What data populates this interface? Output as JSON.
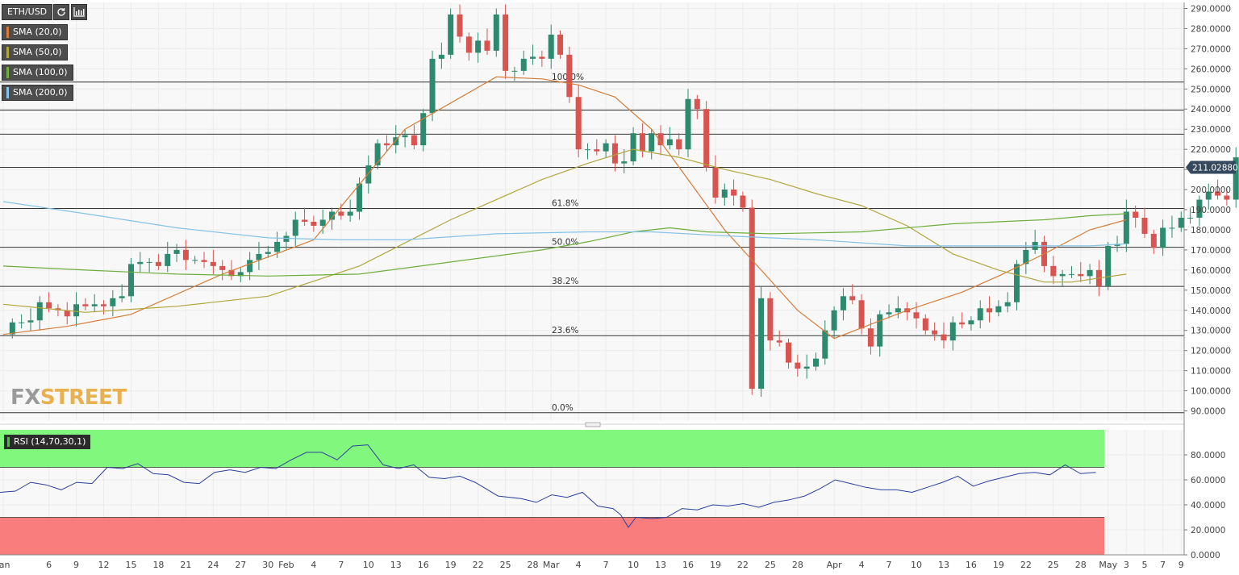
{
  "header": {
    "symbol": "ETH/USD"
  },
  "toolbar": [
    {
      "icon": "refresh-icon"
    },
    {
      "icon": "bar-chart-icon"
    }
  ],
  "indicators": [
    {
      "label": "SMA (20,0)",
      "color": "#d67c37"
    },
    {
      "label": "SMA (50,0)",
      "color": "#b0a63c"
    },
    {
      "label": "SMA (100,0)",
      "color": "#6eae3c"
    },
    {
      "label": "SMA (200,0)",
      "color": "#84c2e8"
    }
  ],
  "rsi_label": "RSI (14,70,30,1)",
  "logo": {
    "fx": "FX",
    "street": "STREET"
  },
  "chart_data": {
    "type": "candlestick",
    "symbol": "ETH/USD",
    "ylim": [
      85,
      293
    ],
    "y_ticks": [
      "90.0000",
      "100.0000",
      "110.0000",
      "120.0000",
      "130.0000",
      "140.0000",
      "150.0000",
      "160.0000",
      "170.0000",
      "180.0000",
      "190.0000",
      "200.0000",
      "210.0000",
      "220.0000",
      "230.0000",
      "240.0000",
      "250.0000",
      "260.0000",
      "270.0000",
      "280.0000",
      "290.0000"
    ],
    "y_tick_values": [
      90,
      100,
      110,
      120,
      130,
      140,
      150,
      160,
      170,
      180,
      190,
      200,
      210,
      220,
      230,
      240,
      250,
      260,
      270,
      280,
      290
    ],
    "x_ticks": [
      {
        "label": "Jan",
        "day": 1
      },
      {
        "label": "6",
        "day": 6
      },
      {
        "label": "9",
        "day": 9
      },
      {
        "label": "12",
        "day": 12
      },
      {
        "label": "15",
        "day": 15
      },
      {
        "label": "18",
        "day": 18
      },
      {
        "label": "21",
        "day": 21
      },
      {
        "label": "24",
        "day": 24
      },
      {
        "label": "27",
        "day": 27
      },
      {
        "label": "30",
        "day": 30
      },
      {
        "label": "Feb",
        "day": 32
      },
      {
        "label": "4",
        "day": 35
      },
      {
        "label": "7",
        "day": 38
      },
      {
        "label": "10",
        "day": 41
      },
      {
        "label": "13",
        "day": 44
      },
      {
        "label": "16",
        "day": 47
      },
      {
        "label": "19",
        "day": 50
      },
      {
        "label": "22",
        "day": 53
      },
      {
        "label": "25",
        "day": 56
      },
      {
        "label": "28",
        "day": 59
      },
      {
        "label": "Mar",
        "day": 61
      },
      {
        "label": "4",
        "day": 64
      },
      {
        "label": "7",
        "day": 67
      },
      {
        "label": "10",
        "day": 70
      },
      {
        "label": "13",
        "day": 73
      },
      {
        "label": "16",
        "day": 76
      },
      {
        "label": "19",
        "day": 79
      },
      {
        "label": "22",
        "day": 82
      },
      {
        "label": "25",
        "day": 85
      },
      {
        "label": "28",
        "day": 88
      },
      {
        "label": "Apr",
        "day": 92
      },
      {
        "label": "4",
        "day": 95
      },
      {
        "label": "7",
        "day": 98
      },
      {
        "label": "10",
        "day": 101
      },
      {
        "label": "13",
        "day": 104
      },
      {
        "label": "16",
        "day": 107
      },
      {
        "label": "19",
        "day": 110
      },
      {
        "label": "22",
        "day": 113
      },
      {
        "label": "25",
        "day": 116
      },
      {
        "label": "28",
        "day": 119
      },
      {
        "label": "May",
        "day": 122
      },
      {
        "label": "3",
        "day": 124
      },
      {
        "label": "5",
        "day": 126
      },
      {
        "label": "7",
        "day": 128
      },
      {
        "label": "9",
        "day": 130
      }
    ],
    "first_day": 2,
    "candles": [
      [
        128,
        134
      ],
      [
        134,
        134
      ],
      [
        134,
        135
      ],
      [
        135,
        144
      ],
      [
        144,
        141
      ],
      [
        141,
        140
      ],
      [
        140,
        137
      ],
      [
        137,
        143
      ],
      [
        143,
        142
      ],
      [
        142,
        143
      ],
      [
        143,
        142
      ],
      [
        142,
        146
      ],
      [
        146,
        147
      ],
      [
        147,
        163
      ],
      [
        163,
        164
      ],
      [
        164,
        164
      ],
      [
        164,
        162
      ],
      [
        162,
        168
      ],
      [
        168,
        170
      ],
      [
        170,
        165
      ],
      [
        165,
        165
      ],
      [
        165,
        164
      ],
      [
        164,
        162
      ],
      [
        162,
        160
      ],
      [
        160,
        157
      ],
      [
        157,
        159
      ],
      [
        159,
        165
      ],
      [
        165,
        168
      ],
      [
        168,
        169
      ],
      [
        169,
        174
      ],
      [
        174,
        177
      ],
      [
        177,
        185
      ],
      [
        185,
        184
      ],
      [
        184,
        182
      ],
      [
        182,
        185
      ],
      [
        185,
        189
      ],
      [
        189,
        187
      ],
      [
        187,
        189
      ],
      [
        189,
        203
      ],
      [
        203,
        212
      ],
      [
        212,
        223
      ],
      [
        223,
        222
      ],
      [
        222,
        226
      ],
      [
        226,
        227
      ],
      [
        227,
        222
      ],
      [
        222,
        238
      ],
      [
        238,
        265
      ],
      [
        265,
        267
      ],
      [
        267,
        287
      ],
      [
        287,
        276
      ],
      [
        276,
        268
      ],
      [
        268,
        274
      ],
      [
        274,
        269
      ],
      [
        269,
        287
      ],
      [
        287,
        259
      ],
      [
        259,
        259
      ],
      [
        259,
        265
      ],
      [
        265,
        266
      ],
      [
        266,
        265
      ],
      [
        265,
        277
      ],
      [
        277,
        267
      ],
      [
        267,
        246
      ],
      [
        246,
        220
      ],
      [
        220,
        220
      ],
      [
        220,
        219
      ],
      [
        219,
        223
      ],
      [
        223,
        213
      ],
      [
        213,
        214
      ],
      [
        214,
        228
      ],
      [
        228,
        219
      ],
      [
        219,
        228
      ],
      [
        228,
        222
      ],
      [
        222,
        225
      ],
      [
        225,
        220
      ],
      [
        220,
        245
      ],
      [
        245,
        240
      ],
      [
        240,
        211
      ],
      [
        211,
        196
      ],
      [
        196,
        200
      ],
      [
        200,
        197
      ],
      [
        197,
        191
      ],
      [
        191,
        101
      ],
      [
        101,
        146
      ],
      [
        146,
        125
      ],
      [
        125,
        124
      ],
      [
        124,
        114
      ],
      [
        114,
        111
      ],
      [
        111,
        112
      ],
      [
        112,
        116
      ],
      [
        116,
        130
      ],
      [
        130,
        140
      ],
      [
        140,
        147
      ],
      [
        147,
        145
      ],
      [
        145,
        131
      ],
      [
        131,
        122
      ],
      [
        122,
        138
      ],
      [
        138,
        139
      ],
      [
        139,
        141
      ],
      [
        141,
        139
      ],
      [
        139,
        136
      ],
      [
        136,
        130
      ],
      [
        130,
        128
      ],
      [
        128,
        125
      ],
      [
        125,
        134
      ],
      [
        134,
        133
      ],
      [
        133,
        135
      ],
      [
        135,
        141
      ],
      [
        141,
        139
      ],
      [
        139,
        142
      ],
      [
        142,
        144
      ],
      [
        144,
        163
      ],
      [
        163,
        170
      ],
      [
        170,
        174
      ],
      [
        174,
        162
      ],
      [
        162,
        157
      ],
      [
        157,
        158
      ],
      [
        158,
        158
      ],
      [
        158,
        157
      ],
      [
        157,
        160
      ],
      [
        160,
        152
      ],
      [
        152,
        172
      ],
      [
        172,
        173
      ],
      [
        173,
        189
      ],
      [
        189,
        186
      ],
      [
        186,
        178
      ],
      [
        178,
        171
      ],
      [
        171,
        181
      ],
      [
        181,
        181
      ],
      [
        181,
        186
      ],
      [
        186,
        186
      ],
      [
        186,
        195
      ],
      [
        195,
        199
      ],
      [
        199,
        197
      ],
      [
        197,
        195
      ],
      [
        195,
        216
      ],
      [
        216,
        207
      ],
      [
        207,
        213
      ],
      [
        213,
        212
      ]
    ],
    "series": [
      {
        "color": "#d67c37",
        "points": [
          [
            1,
            128
          ],
          [
            8,
            132
          ],
          [
            15,
            138
          ],
          [
            25,
            158
          ],
          [
            35,
            175
          ],
          [
            45,
            230
          ],
          [
            55,
            256
          ],
          [
            60,
            255
          ],
          [
            64,
            252
          ],
          [
            68,
            246
          ],
          [
            72,
            230
          ],
          [
            76,
            205
          ],
          [
            80,
            180
          ],
          [
            84,
            160
          ],
          [
            88,
            140
          ],
          [
            92,
            126
          ],
          [
            96,
            133
          ],
          [
            100,
            140
          ],
          [
            106,
            149
          ],
          [
            110,
            157
          ],
          [
            115,
            168
          ],
          [
            120,
            180
          ],
          [
            124,
            185
          ]
        ]
      },
      {
        "color": "#b0a63c",
        "points": [
          [
            1,
            143
          ],
          [
            10,
            139
          ],
          [
            20,
            142
          ],
          [
            30,
            147
          ],
          [
            40,
            162
          ],
          [
            50,
            185
          ],
          [
            60,
            205
          ],
          [
            65,
            213
          ],
          [
            70,
            220
          ],
          [
            75,
            216
          ],
          [
            80,
            210
          ],
          [
            85,
            205
          ],
          [
            90,
            198
          ],
          [
            95,
            192
          ],
          [
            100,
            182
          ],
          [
            105,
            168
          ],
          [
            110,
            160
          ],
          [
            115,
            154
          ],
          [
            118,
            154
          ],
          [
            121,
            156
          ],
          [
            124,
            158
          ]
        ]
      },
      {
        "color": "#6eae3c",
        "points": [
          [
            1,
            162
          ],
          [
            10,
            160
          ],
          [
            20,
            158
          ],
          [
            30,
            157
          ],
          [
            40,
            158
          ],
          [
            50,
            164
          ],
          [
            60,
            170
          ],
          [
            65,
            174
          ],
          [
            70,
            179
          ],
          [
            74,
            181
          ],
          [
            78,
            179
          ],
          [
            85,
            178
          ],
          [
            95,
            179
          ],
          [
            105,
            183
          ],
          [
            115,
            185
          ],
          [
            120,
            187
          ],
          [
            124,
            188
          ]
        ]
      },
      {
        "color": "#84c2e8",
        "points": [
          [
            1,
            194
          ],
          [
            10,
            188
          ],
          [
            20,
            181
          ],
          [
            30,
            176
          ],
          [
            38,
            175
          ],
          [
            45,
            175
          ],
          [
            55,
            178
          ],
          [
            65,
            179
          ],
          [
            72,
            179
          ],
          [
            80,
            177
          ],
          [
            90,
            175
          ],
          [
            100,
            172
          ],
          [
            110,
            172
          ],
          [
            120,
            172
          ],
          [
            124,
            173
          ]
        ]
      }
    ],
    "hlines": [
      {
        "value": 253.4,
        "label": "100.0%"
      },
      {
        "value": 239.5,
        "label": ""
      },
      {
        "value": 227.5,
        "label": ""
      },
      {
        "value": 211.02,
        "label": ""
      },
      {
        "value": 190.6,
        "label": "61.8%"
      },
      {
        "value": 171.3,
        "label": "50.0%"
      },
      {
        "value": 151.9,
        "label": "38.2%"
      },
      {
        "value": 127.4,
        "label": "23.6%"
      },
      {
        "value": 89.1,
        "label": "0.0%"
      }
    ],
    "current_price": "211.02880",
    "current_value": 211.0288,
    "rsi": {
      "ylim": [
        0,
        100
      ],
      "y_ticks": [
        "0.0000",
        "20.0000",
        "40.0000",
        "60.0000",
        "80.0000"
      ],
      "y_tick_values": [
        0,
        20,
        40,
        60,
        80
      ],
      "overbought": 70,
      "oversold": 30,
      "points": [
        [
          1,
          50
        ],
        [
          3,
          51
        ],
        [
          5,
          58
        ],
        [
          7,
          56
        ],
        [
          9,
          52
        ],
        [
          11,
          58
        ],
        [
          13,
          57
        ],
        [
          15,
          70
        ],
        [
          17,
          69
        ],
        [
          19,
          73
        ],
        [
          21,
          65
        ],
        [
          23,
          64
        ],
        [
          25,
          58
        ],
        [
          27,
          57
        ],
        [
          29,
          66
        ],
        [
          31,
          68
        ],
        [
          33,
          66
        ],
        [
          35,
          70
        ],
        [
          37,
          69
        ],
        [
          39,
          76
        ],
        [
          41,
          82
        ],
        [
          43,
          82
        ],
        [
          45,
          76
        ],
        [
          47,
          87
        ],
        [
          49,
          88
        ],
        [
          51,
          72
        ],
        [
          53,
          69
        ],
        [
          55,
          72
        ],
        [
          57,
          62
        ],
        [
          59,
          61
        ],
        [
          61,
          63
        ],
        [
          63,
          58
        ],
        [
          66,
          47
        ],
        [
          69,
          45
        ],
        [
          71,
          42
        ],
        [
          73,
          48
        ],
        [
          75,
          46
        ],
        [
          77,
          50
        ],
        [
          79,
          39
        ],
        [
          81,
          37
        ],
        [
          82,
          32
        ],
        [
          83,
          22
        ],
        [
          84,
          30
        ],
        [
          86,
          29
        ],
        [
          88,
          30
        ],
        [
          90,
          37
        ],
        [
          92,
          36
        ],
        [
          94,
          40
        ],
        [
          96,
          39
        ],
        [
          98,
          41
        ],
        [
          100,
          38
        ],
        [
          102,
          42
        ],
        [
          104,
          44
        ],
        [
          106,
          47
        ],
        [
          108,
          53
        ],
        [
          110,
          60
        ],
        [
          112,
          57
        ],
        [
          114,
          54
        ],
        [
          116,
          52
        ],
        [
          118,
          52
        ],
        [
          120,
          50
        ],
        [
          122,
          54
        ],
        [
          124,
          58
        ],
        [
          126,
          63
        ],
        [
          128,
          55
        ],
        [
          130,
          59
        ],
        [
          132,
          62
        ],
        [
          134,
          65
        ],
        [
          136,
          66
        ],
        [
          138,
          64
        ],
        [
          140,
          72
        ],
        [
          142,
          65
        ],
        [
          144,
          66
        ]
      ]
    }
  }
}
